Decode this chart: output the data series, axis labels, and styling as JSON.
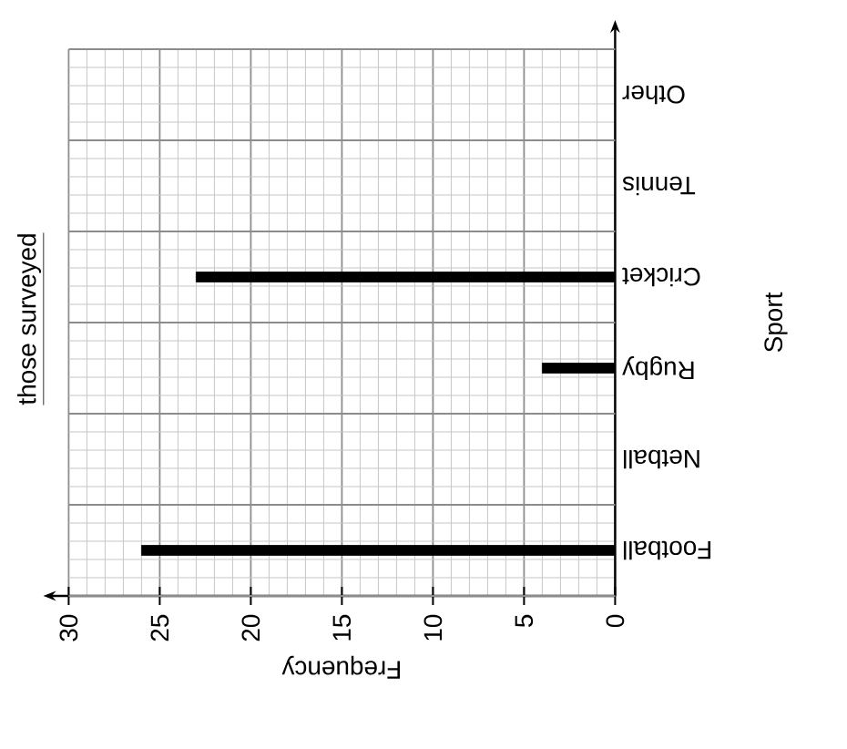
{
  "chart_data": {
    "type": "bar",
    "orientation": "horizontal",
    "categories": [
      "Other",
      "Tennis",
      "Cricket",
      "Rugby",
      "Netball",
      "Football"
    ],
    "values": [
      null,
      null,
      23,
      4,
      null,
      26
    ],
    "color": "#000000",
    "xlabel": "Frequency",
    "ylabel": "Sport",
    "xlim": [
      30,
      0
    ],
    "xticks": [
      0,
      5,
      10,
      15,
      20,
      25,
      30
    ],
    "grid": true,
    "annotations": [
      "those surveyed"
    ]
  }
}
